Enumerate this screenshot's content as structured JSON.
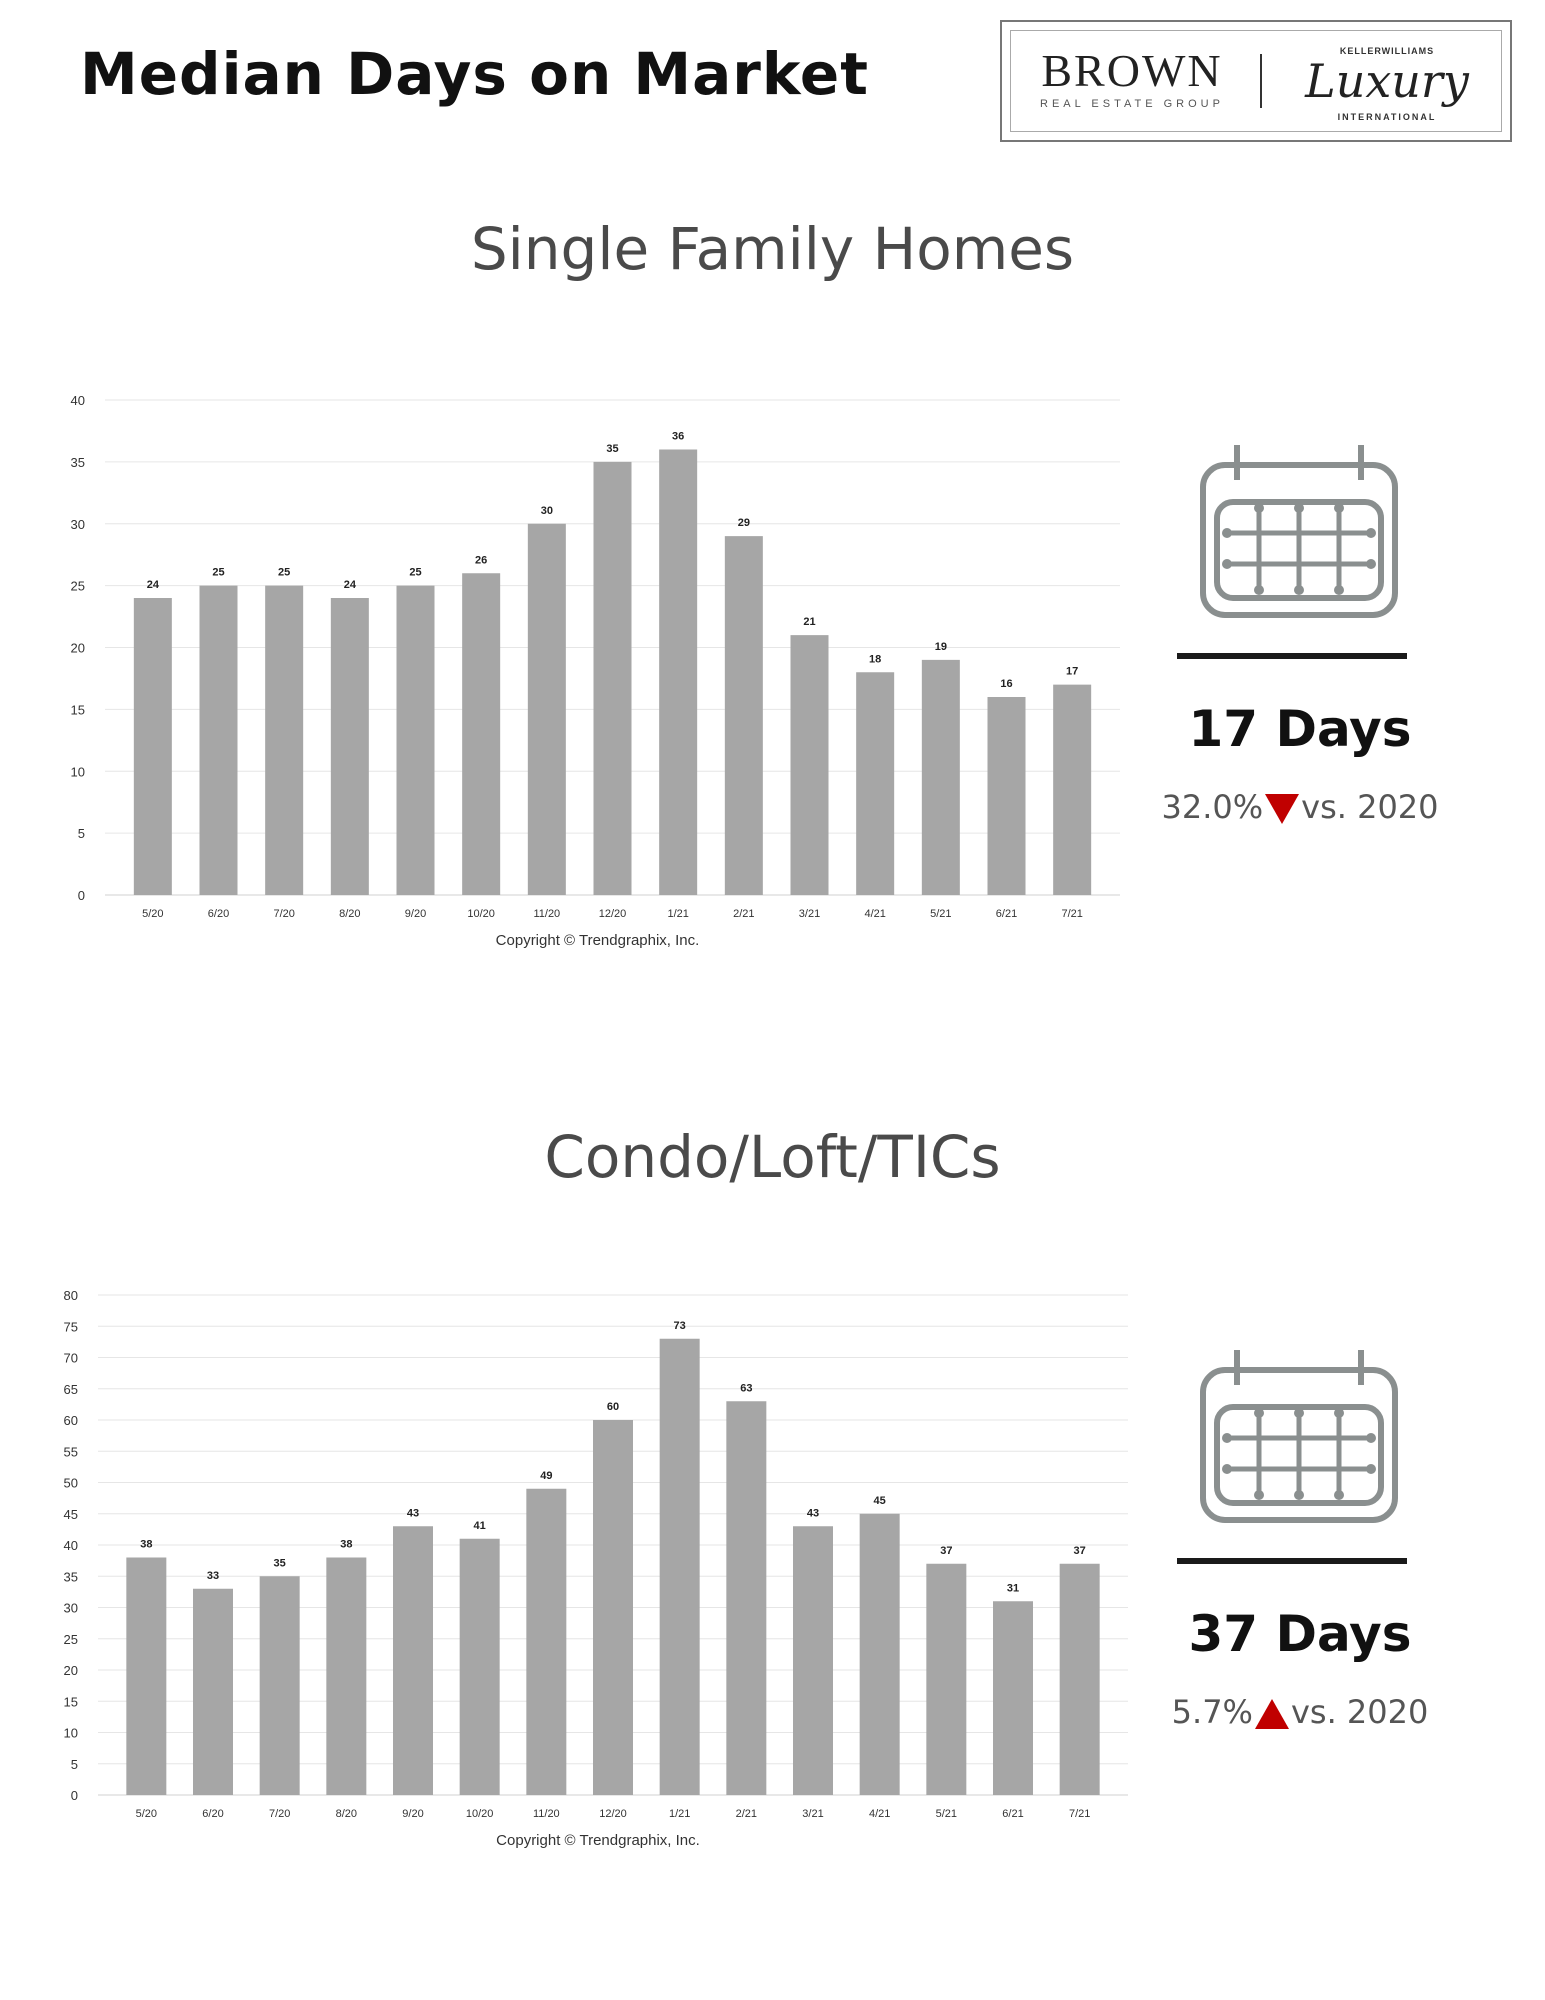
{
  "page": {
    "title": "Median Days on Market"
  },
  "logo": {
    "brand": "BROWN",
    "brand_sub": "REAL ESTATE GROUP",
    "partner_top": "KELLERWILLIAMS",
    "partner": "Luxury",
    "partner_bottom": "INTERNATIONAL"
  },
  "sections": [
    {
      "title": "Single Family Homes",
      "stat": {
        "value": "17 Days",
        "change_pct": "32.0%",
        "direction": "down",
        "change_suffix": "vs. 2020"
      }
    },
    {
      "title": "Condo/Loft/TICs",
      "stat": {
        "value": "37 Days",
        "change_pct": "5.7%",
        "direction": "up",
        "change_suffix": "vs. 2020"
      }
    }
  ],
  "colors": {
    "bar": "#a6a6a6",
    "grid": "#e6e6e6",
    "accent": "#c00000",
    "icon": "#8a8f8f"
  },
  "icons": [
    "calendar-icon",
    "triangle-down-icon",
    "triangle-up-icon"
  ],
  "chart_data": [
    {
      "type": "bar",
      "categories": [
        "5/20",
        "6/20",
        "7/20",
        "8/20",
        "9/20",
        "10/20",
        "11/20",
        "12/20",
        "1/21",
        "2/21",
        "3/21",
        "4/21",
        "5/21",
        "6/21",
        "7/21"
      ],
      "values": [
        24,
        25,
        25,
        24,
        25,
        26,
        30,
        35,
        36,
        29,
        21,
        18,
        19,
        16,
        17
      ],
      "ylim": [
        0,
        40
      ],
      "yticks": [
        0,
        5,
        10,
        15,
        20,
        25,
        30,
        35,
        40
      ],
      "grid": true,
      "data_labels": true,
      "copyright": "Copyright © Trendgraphix, Inc."
    },
    {
      "type": "bar",
      "categories": [
        "5/20",
        "6/20",
        "7/20",
        "8/20",
        "9/20",
        "10/20",
        "11/20",
        "12/20",
        "1/21",
        "2/21",
        "3/21",
        "4/21",
        "5/21",
        "6/21",
        "7/21"
      ],
      "values": [
        38,
        33,
        35,
        38,
        43,
        41,
        49,
        60,
        73,
        63,
        43,
        45,
        37,
        31,
        37
      ],
      "ylim": [
        0,
        80
      ],
      "yticks": [
        0,
        5,
        10,
        15,
        20,
        25,
        30,
        35,
        40,
        45,
        50,
        55,
        60,
        65,
        70,
        75,
        80
      ],
      "grid": true,
      "data_labels": true,
      "copyright": "Copyright © Trendgraphix, Inc."
    }
  ]
}
